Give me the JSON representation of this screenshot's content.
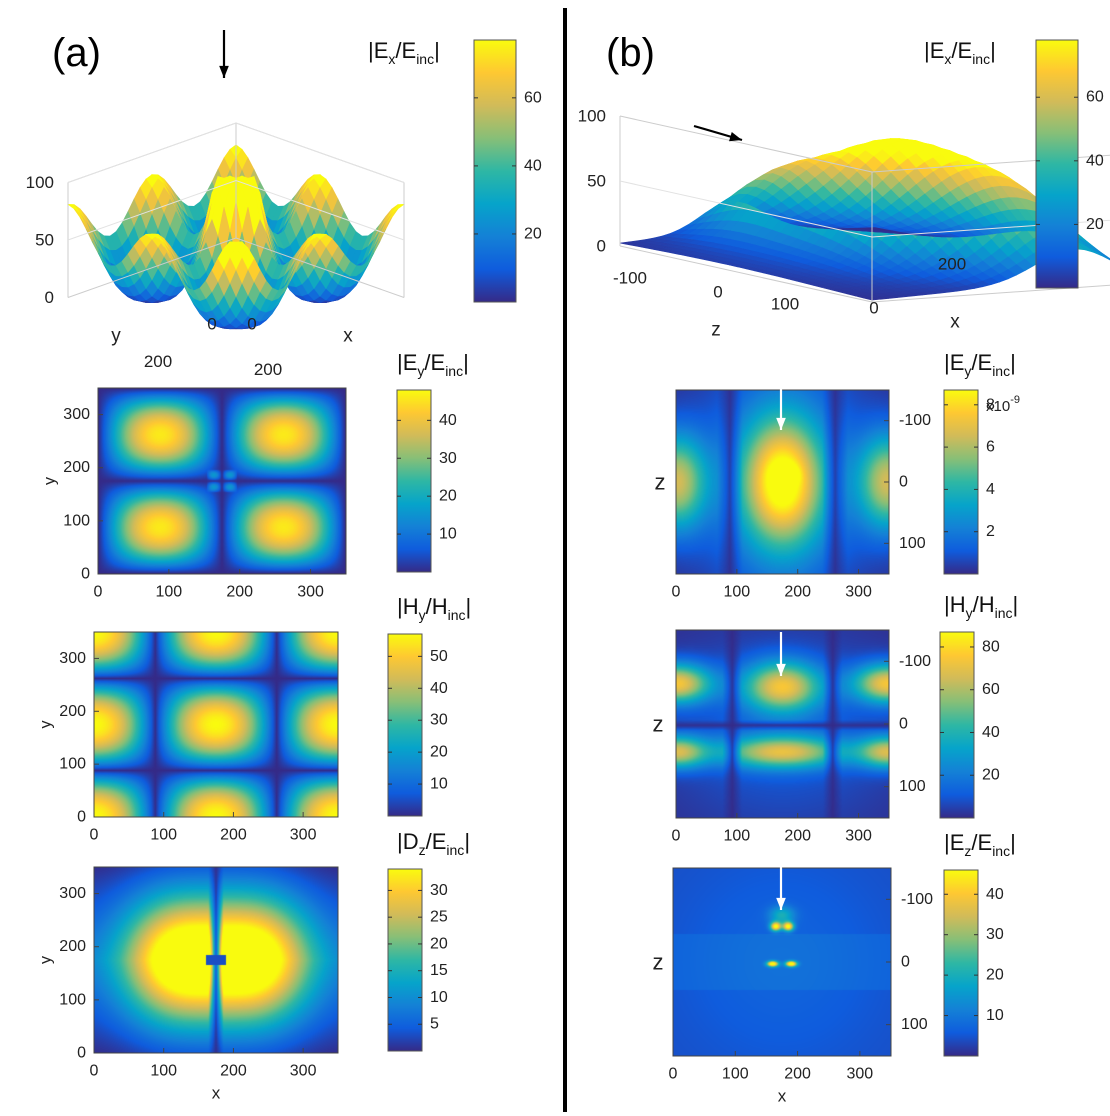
{
  "colormap": [
    "#352a87",
    "#0f5cdd",
    "#1481d6",
    "#06a4ca",
    "#2eb7a4",
    "#87bf77",
    "#d1bb59",
    "#fec832",
    "#f9fb0e"
  ],
  "colors": {
    "background": "#ffffff",
    "divider": "#000000",
    "arrow_3d": "#000000",
    "arrow_2d": "#ffffff",
    "mesh_edge": "#2b3a8a"
  },
  "panel_labels": {
    "a": "(a)",
    "b": "(b)"
  },
  "chart_data": [
    {
      "id": "a-surface",
      "type": "surface3d",
      "title": "|Ex/Einc|",
      "title_parts": [
        {
          "t": "|E"
        },
        {
          "t": "x",
          "sub": true
        },
        {
          "t": "/E"
        },
        {
          "t": "inc",
          "sub": true
        },
        {
          "t": "|"
        }
      ],
      "xlabel": "x",
      "ylabel": "y",
      "zlabel": "",
      "xrange": [
        0,
        350
      ],
      "yrange": [
        0,
        350
      ],
      "zlim": [
        0,
        100
      ],
      "z_ticks": [
        0,
        50,
        100
      ],
      "x_ticks": [
        0,
        200
      ],
      "y_ticks": [
        0,
        200
      ],
      "colorbar": {
        "range": [
          0,
          77
        ],
        "ticks": [
          20,
          40,
          60
        ]
      },
      "annotation": "arrow marking central peak"
    },
    {
      "id": "a-ey",
      "type": "heatmap",
      "title": "|Ey/Einc|",
      "title_parts": [
        {
          "t": "|E"
        },
        {
          "t": "y",
          "sub": true
        },
        {
          "t": "/E"
        },
        {
          "t": "inc",
          "sub": true
        },
        {
          "t": "|"
        }
      ],
      "xlabel": "",
      "ylabel": "y",
      "xlim": [
        0,
        350
      ],
      "ylim": [
        0,
        350
      ],
      "x_ticks": [
        0,
        100,
        200,
        300
      ],
      "y_ticks": [
        0,
        100,
        200,
        300
      ],
      "colorbar": {
        "range": [
          0,
          48
        ],
        "ticks": [
          10,
          20,
          30,
          40
        ]
      }
    },
    {
      "id": "a-hy",
      "type": "heatmap",
      "title": "|Hy/Hinc|",
      "title_parts": [
        {
          "t": "|H"
        },
        {
          "t": "y",
          "sub": true
        },
        {
          "t": "/H"
        },
        {
          "t": "inc",
          "sub": true
        },
        {
          "t": "|"
        }
      ],
      "xlabel": "",
      "ylabel": "y",
      "xlim": [
        0,
        350
      ],
      "ylim": [
        0,
        350
      ],
      "x_ticks": [
        0,
        100,
        200,
        300
      ],
      "y_ticks": [
        0,
        100,
        200,
        300
      ],
      "colorbar": {
        "range": [
          0,
          57
        ],
        "ticks": [
          10,
          20,
          30,
          40,
          50
        ]
      }
    },
    {
      "id": "a-dz",
      "type": "heatmap",
      "title": "|Dz/Einc|",
      "title_parts": [
        {
          "t": "|D"
        },
        {
          "t": "z",
          "sub": true
        },
        {
          "t": "/E"
        },
        {
          "t": "inc",
          "sub": true
        },
        {
          "t": "|"
        }
      ],
      "xlabel": "x",
      "ylabel": "y",
      "xlim": [
        0,
        350
      ],
      "ylim": [
        0,
        350
      ],
      "x_ticks": [
        0,
        100,
        200,
        300
      ],
      "y_ticks": [
        0,
        100,
        200,
        300
      ],
      "colorbar": {
        "range": [
          0,
          34
        ],
        "ticks": [
          5,
          10,
          15,
          20,
          25,
          30
        ]
      }
    },
    {
      "id": "b-surface",
      "type": "surface3d",
      "title": "|Ex/Einc|",
      "title_parts": [
        {
          "t": "|E"
        },
        {
          "t": "x",
          "sub": true
        },
        {
          "t": "/E"
        },
        {
          "t": "inc",
          "sub": true
        },
        {
          "t": "|"
        }
      ],
      "xlabel": "z",
      "ylabel": "x",
      "zlabel": "",
      "xrange": [
        -150,
        150
      ],
      "yrange": [
        0,
        350
      ],
      "zlim": [
        0,
        100
      ],
      "z_ticks": [
        0,
        50,
        100
      ],
      "x_ticks": [
        -100,
        0,
        100
      ],
      "y_ticks": [
        0,
        200
      ],
      "colorbar": {
        "range": [
          0,
          78
        ],
        "ticks": [
          20,
          40,
          60
        ]
      },
      "annotation": "arrow marking peak"
    },
    {
      "id": "b-ey",
      "type": "heatmap",
      "title": "|Ey/Einc|",
      "title_parts": [
        {
          "t": "|E"
        },
        {
          "t": "y",
          "sub": true
        },
        {
          "t": "/E"
        },
        {
          "t": "inc",
          "sub": true
        },
        {
          "t": "|"
        }
      ],
      "xlabel": "",
      "ylabel": "z",
      "xlim": [
        0,
        350
      ],
      "ylim": [
        -150,
        150
      ],
      "x_ticks": [
        0,
        100,
        200,
        300
      ],
      "y_ticks": [
        -100,
        0,
        100
      ],
      "y_axis_side": "right",
      "colorbar": {
        "range": [
          0,
          8.7
        ],
        "ticks": [
          2,
          4,
          6,
          8
        ],
        "exponent_label": "x10-9"
      }
    },
    {
      "id": "b-hy",
      "type": "heatmap",
      "title": "|Hy/Hinc|",
      "title_parts": [
        {
          "t": "|H"
        },
        {
          "t": "y",
          "sub": true
        },
        {
          "t": "/H"
        },
        {
          "t": "inc",
          "sub": true
        },
        {
          "t": "|"
        }
      ],
      "xlabel": "",
      "ylabel": "z",
      "xlim": [
        0,
        350
      ],
      "ylim": [
        -150,
        150
      ],
      "x_ticks": [
        0,
        100,
        200,
        300
      ],
      "y_ticks": [
        -100,
        0,
        100
      ],
      "y_axis_side": "right",
      "colorbar": {
        "range": [
          0,
          87
        ],
        "ticks": [
          20,
          40,
          60,
          80
        ]
      }
    },
    {
      "id": "b-ez",
      "type": "heatmap",
      "title": "|Ez/Einc|",
      "title_parts": [
        {
          "t": "|E"
        },
        {
          "t": "z",
          "sub": true
        },
        {
          "t": "/E"
        },
        {
          "t": "inc",
          "sub": true
        },
        {
          "t": "|"
        }
      ],
      "xlabel": "x",
      "ylabel": "z",
      "xlim": [
        0,
        350
      ],
      "ylim": [
        -150,
        150
      ],
      "x_ticks": [
        0,
        100,
        200,
        300
      ],
      "y_ticks": [
        -100,
        0,
        100
      ],
      "y_axis_side": "right",
      "colorbar": {
        "range": [
          0,
          46
        ],
        "ticks": [
          10,
          20,
          30,
          40
        ]
      }
    }
  ]
}
